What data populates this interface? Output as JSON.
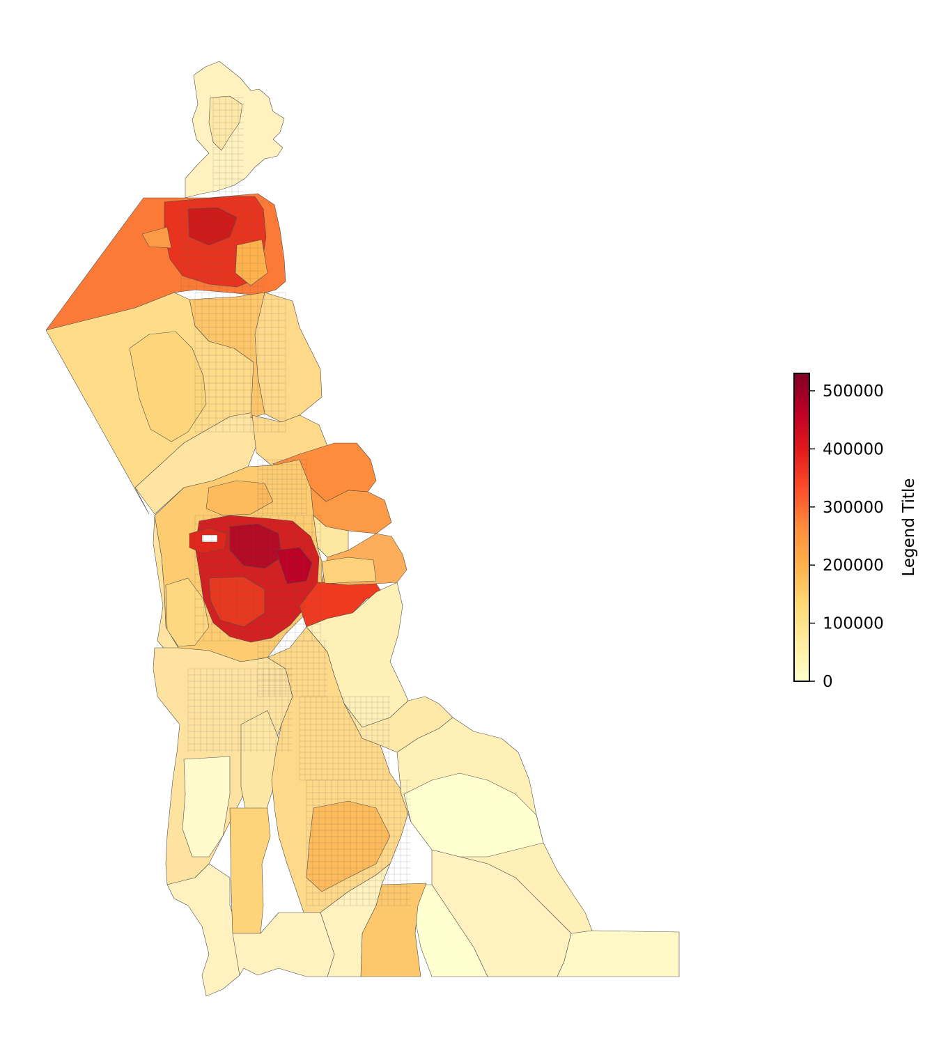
{
  "legend": {
    "title": "Legend Title",
    "ticks": [
      "0",
      "100000",
      "200000",
      "300000",
      "400000",
      "500000"
    ],
    "tick_values": [
      0,
      100000,
      200000,
      300000,
      400000,
      500000
    ],
    "min": 0,
    "max": 530000,
    "colormap": "YlOrRd",
    "color_stops": [
      "#ffffcc",
      "#ffeda0",
      "#fed976",
      "#feb24c",
      "#fd8d3c",
      "#fc4e2a",
      "#e31a1c",
      "#bd0026",
      "#800026"
    ]
  },
  "chart_data": {
    "type": "choropleth",
    "legend_title": "Legend Title",
    "colorbar_range": [
      0,
      530000
    ],
    "colorbar_ticks": [
      0,
      100000,
      200000,
      300000,
      400000,
      500000
    ],
    "colormap": "YlOrRd",
    "legend_placement": "right"
  },
  "map": {
    "outline_color": "#4d4d4d"
  }
}
